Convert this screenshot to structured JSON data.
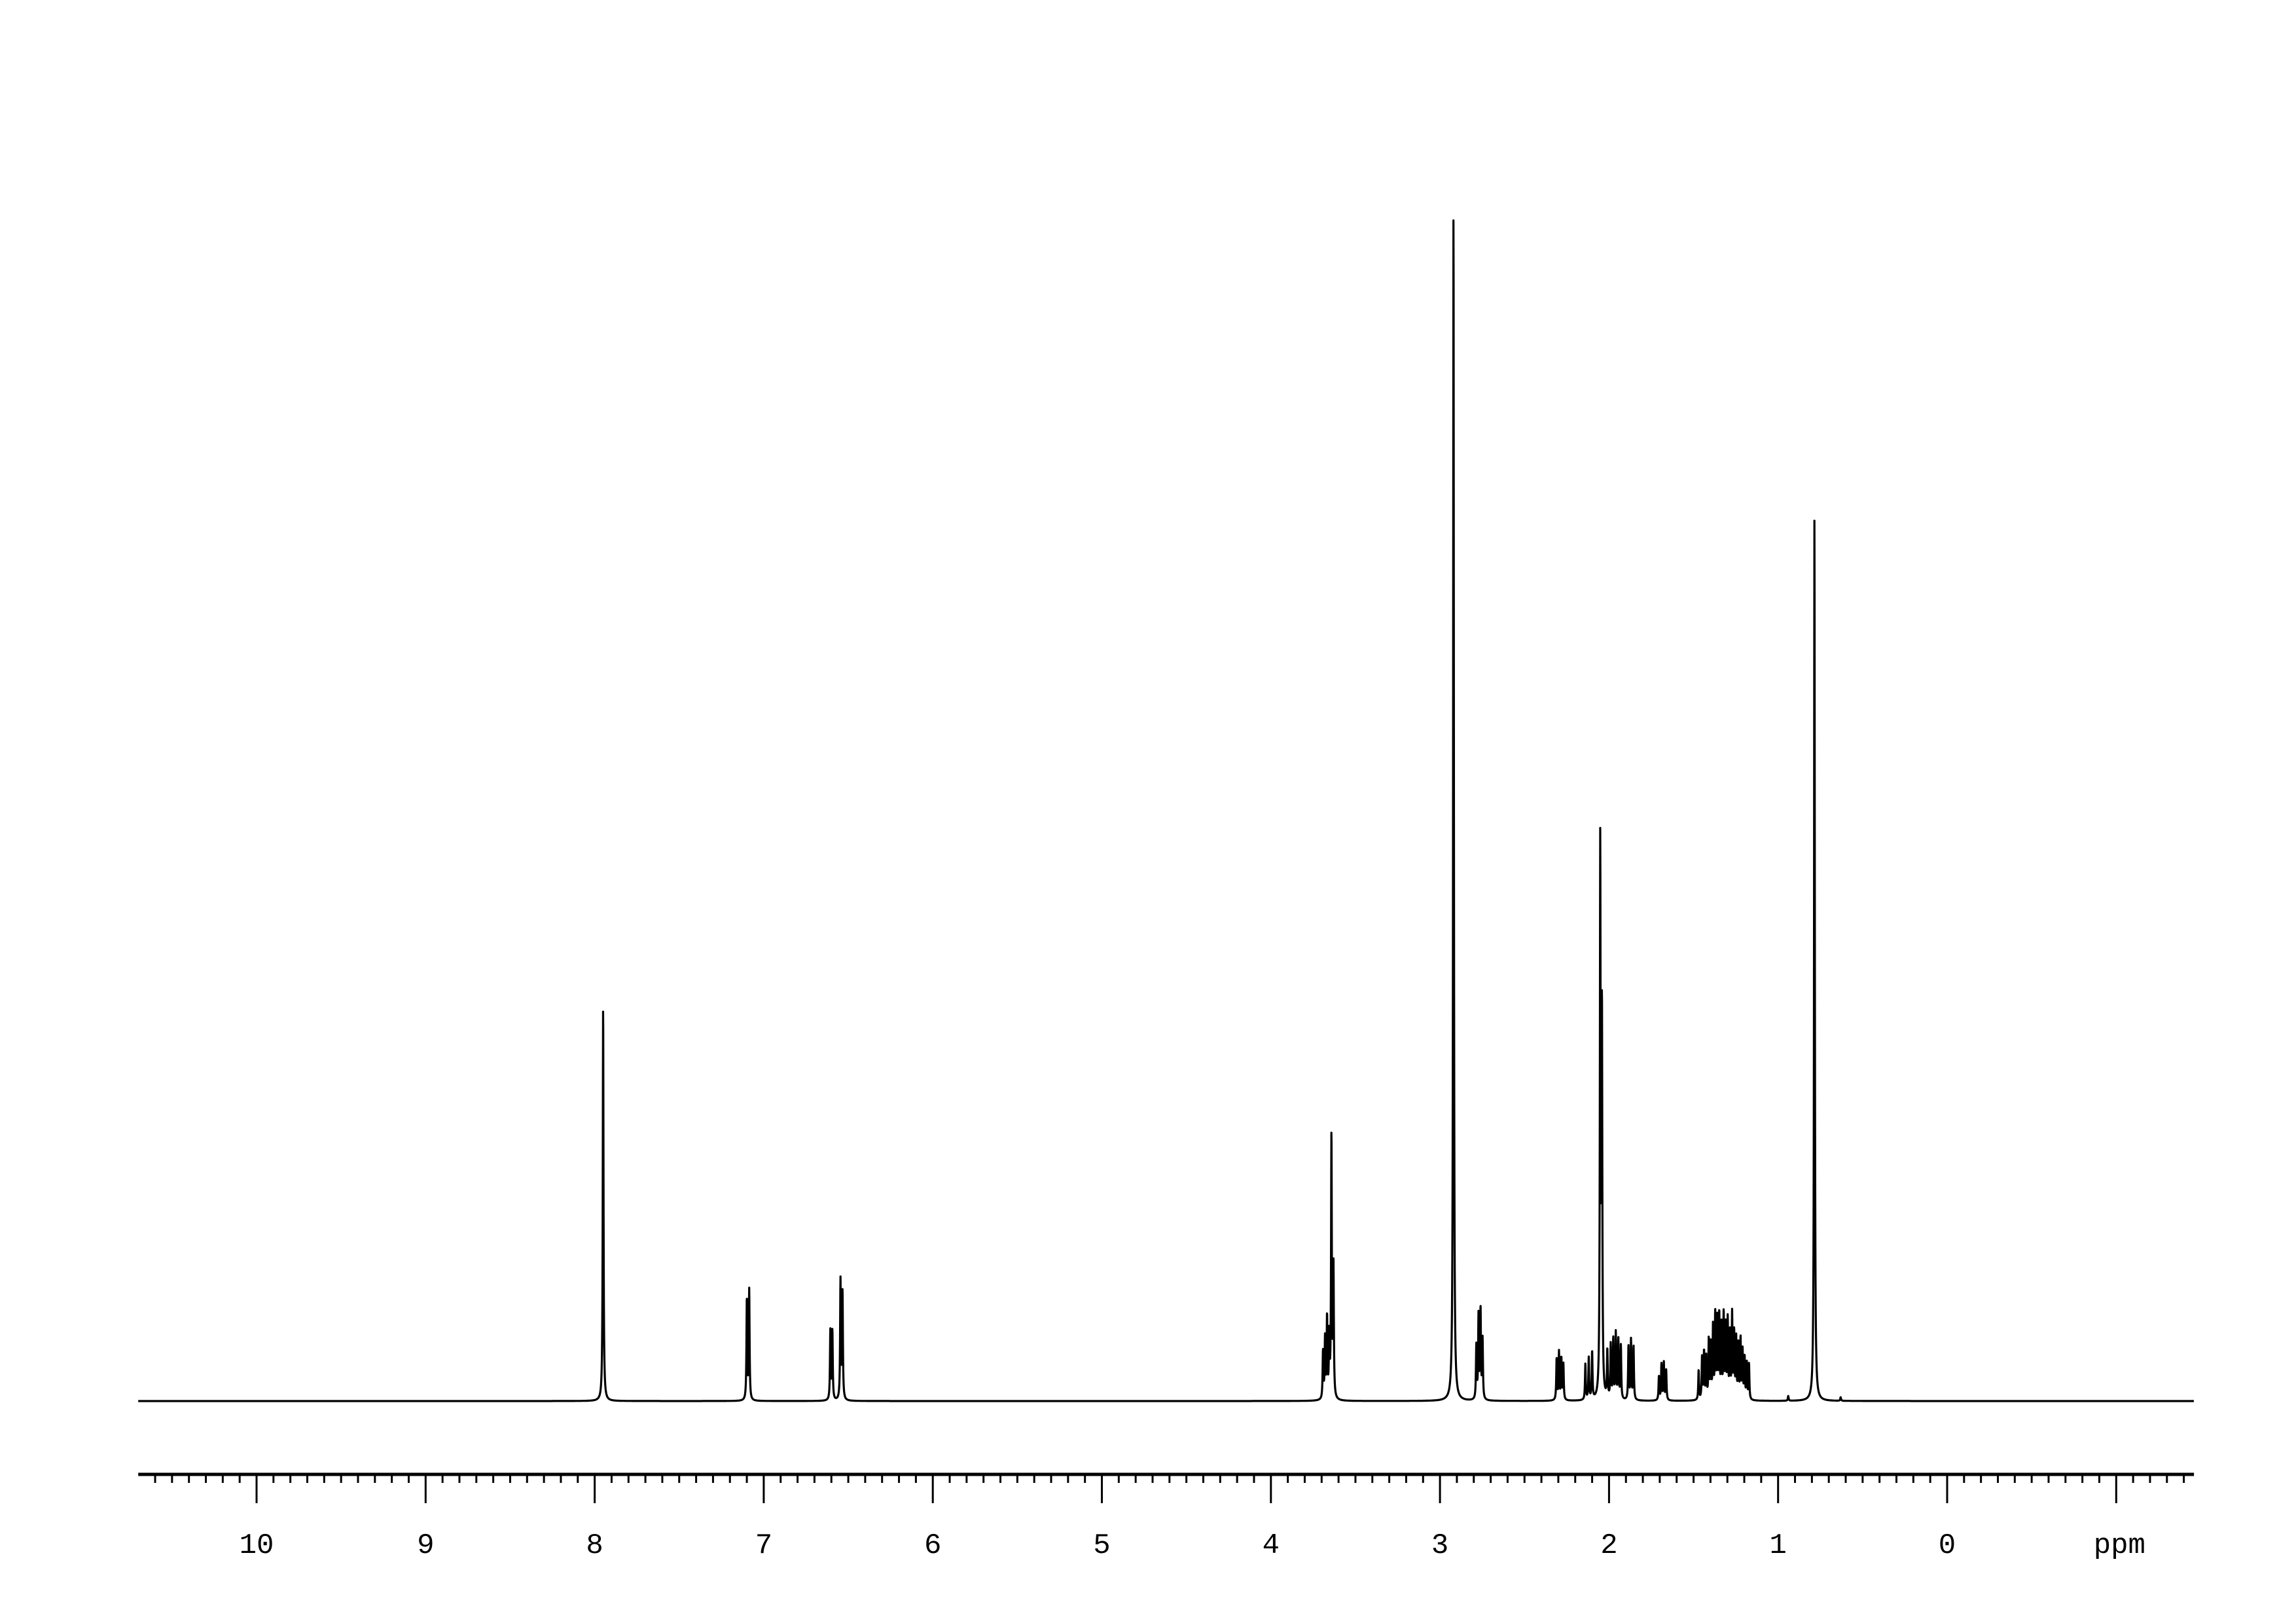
{
  "chart_data": {
    "type": "line",
    "title": "",
    "xlabel": "ppm",
    "ylabel": "",
    "xlim": [
      10.7,
      -1.46
    ],
    "x_reversed": true,
    "grid": false,
    "line_color": "#000000",
    "background": "#ffffff",
    "x_ticks": [
      10,
      9,
      8,
      7,
      6,
      5,
      4,
      3,
      2,
      1,
      0
    ],
    "x_tick_labels": [
      "10",
      "9",
      "8",
      "7",
      "6",
      "5",
      "4",
      "3",
      "2",
      "1",
      "0"
    ],
    "minor_tick_step": 0.1,
    "peaks": [
      [
        7.95,
        0.33
      ],
      [
        7.1,
        0.085
      ],
      [
        7.086,
        0.092
      ],
      [
        6.606,
        0.058
      ],
      [
        6.594,
        0.058
      ],
      [
        6.546,
        0.1
      ],
      [
        6.534,
        0.09
      ],
      [
        3.692,
        0.04
      ],
      [
        3.68,
        0.05
      ],
      [
        3.668,
        0.068
      ],
      [
        3.655,
        0.05
      ],
      [
        3.642,
        0.22
      ],
      [
        3.63,
        0.11
      ],
      [
        2.92,
        1.0
      ],
      [
        2.785,
        0.045
      ],
      [
        2.772,
        0.07
      ],
      [
        2.76,
        0.075
      ],
      [
        2.748,
        0.05
      ],
      [
        2.31,
        0.035
      ],
      [
        2.296,
        0.04
      ],
      [
        2.282,
        0.035
      ],
      [
        2.27,
        0.03
      ],
      [
        2.14,
        0.03
      ],
      [
        2.12,
        0.035
      ],
      [
        2.1,
        0.04
      ],
      [
        2.052,
        0.46
      ],
      [
        2.042,
        0.32
      ],
      [
        2.01,
        0.04
      ],
      [
        1.99,
        0.045
      ],
      [
        1.975,
        0.05
      ],
      [
        1.96,
        0.055
      ],
      [
        1.945,
        0.05
      ],
      [
        1.93,
        0.045
      ],
      [
        1.885,
        0.045
      ],
      [
        1.87,
        0.05
      ],
      [
        1.855,
        0.045
      ],
      [
        1.705,
        0.02
      ],
      [
        1.69,
        0.03
      ],
      [
        1.676,
        0.032
      ],
      [
        1.662,
        0.025
      ],
      [
        1.47,
        0.025
      ],
      [
        1.45,
        0.035
      ],
      [
        1.438,
        0.04
      ],
      [
        1.425,
        0.035
      ],
      [
        1.41,
        0.05
      ],
      [
        1.398,
        0.045
      ],
      [
        1.385,
        0.06
      ],
      [
        1.372,
        0.07
      ],
      [
        1.36,
        0.065
      ],
      [
        1.348,
        0.07
      ],
      [
        1.335,
        0.06
      ],
      [
        1.322,
        0.07
      ],
      [
        1.31,
        0.06
      ],
      [
        1.298,
        0.065
      ],
      [
        1.285,
        0.055
      ],
      [
        1.272,
        0.07
      ],
      [
        1.26,
        0.055
      ],
      [
        1.248,
        0.05
      ],
      [
        1.235,
        0.045
      ],
      [
        1.222,
        0.05
      ],
      [
        1.21,
        0.04
      ],
      [
        1.198,
        0.035
      ],
      [
        1.185,
        0.03
      ],
      [
        1.172,
        0.03
      ],
      [
        0.94,
        0.004
      ],
      [
        0.785,
        0.74
      ],
      [
        0.63,
        0.003
      ]
    ]
  }
}
